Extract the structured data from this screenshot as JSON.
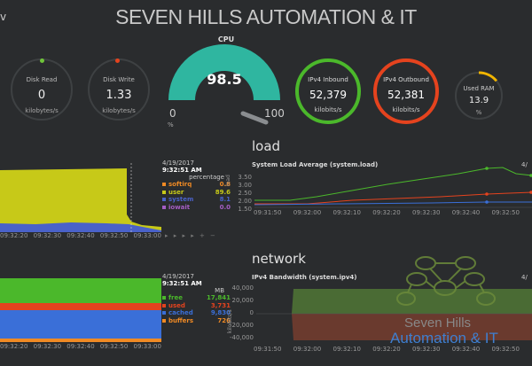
{
  "header": {
    "title": "SEVEN HILLS AUTOMATION & IT",
    "corner_char": "v"
  },
  "top": {
    "disk_read": {
      "label": "Disk Read",
      "value": "0",
      "unit": "kilobytes/s"
    },
    "disk_write": {
      "label": "Disk Write",
      "value": "1.33",
      "unit": "kilobytes/s"
    },
    "cpu": {
      "label": "CPU",
      "value": "98.5",
      "min": "0",
      "max": "100",
      "unit": "%",
      "level": 0.985
    },
    "ipv4_in": {
      "label": "IPv4 Inbound",
      "value": "52,379",
      "unit": "kilobits/s",
      "color": "#4bb82b"
    },
    "ipv4_out": {
      "label": "IPv4 Outbound",
      "value": "52,381",
      "unit": "kilobits/s",
      "color": "#e5431e"
    },
    "ram": {
      "label": "Used RAM",
      "value": "13.9",
      "unit": "%",
      "level": 0.139
    }
  },
  "cpu_chart": {
    "date": "4/19/2017",
    "time": "9:32:51 AM",
    "unit": "percentage",
    "legend": [
      {
        "name": "softirq",
        "value": "0.8",
        "color": "#f08a24"
      },
      {
        "name": "user",
        "value": "89.6",
        "color": "#c7c918"
      },
      {
        "name": "system",
        "value": "8.1",
        "color": "#4a62c9"
      },
      {
        "name": "iowait",
        "value": "0.0",
        "color": "#a55ec4"
      }
    ],
    "x_ticks": [
      "09:32:20",
      "09:32:30",
      "09:32:40",
      "09:32:50",
      "09:33:00"
    ],
    "controls": "▸ ▸ ▸ ▸ + −"
  },
  "load_section": {
    "heading": "load",
    "chart_title": "System Load Average (system.load)",
    "ylabel": "load",
    "y_ticks": [
      "3.50",
      "3.00",
      "2.50",
      "2.00",
      "1.50"
    ],
    "x_ticks": [
      "09:31:50",
      "09:32:00",
      "09:32:10",
      "09:32:20",
      "09:32:30",
      "09:32:40",
      "09:32:50"
    ],
    "corner_label": "4/"
  },
  "ram_chart": {
    "date": "4/19/2017",
    "time": "9:32:51 AM",
    "unit": "MB",
    "legend": [
      {
        "name": "free",
        "value": "17,841",
        "color": "#4bb82b"
      },
      {
        "name": "used",
        "value": "3,731",
        "color": "#e5431e"
      },
      {
        "name": "cached",
        "value": "9,830",
        "color": "#3a6fd8"
      },
      {
        "name": "buffers",
        "value": "726",
        "color": "#f08a24"
      }
    ],
    "x_ticks": [
      "09:32:20",
      "09:32:30",
      "09:32:40",
      "09:32:50",
      "09:33:00"
    ]
  },
  "network_section": {
    "heading": "network",
    "chart_title": "IPv4 Bandwidth (system.ipv4)",
    "ylabel": "kilobits/s",
    "y_ticks": [
      "40,000",
      "20,000",
      "0",
      "-20,000",
      "-40,000"
    ],
    "x_ticks": [
      "09:31:50",
      "09:32:00",
      "09:32:10",
      "09:32:20",
      "09:32:30",
      "09:32:40",
      "09:32:50"
    ],
    "corner_label": "4/"
  },
  "watermark": {
    "line1": "Seven Hills",
    "line2": "Automation & IT"
  }
}
